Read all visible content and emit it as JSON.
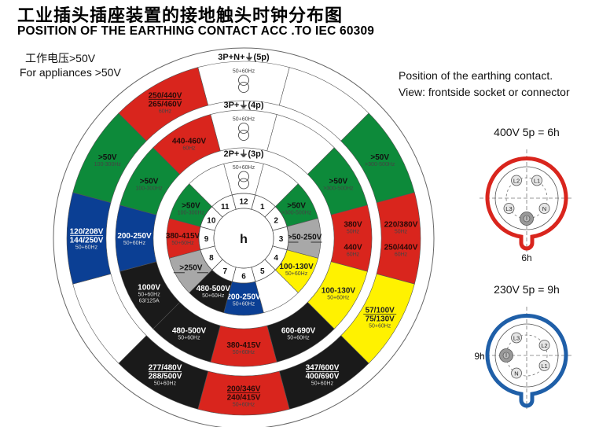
{
  "header": {
    "title": "工业插头插座装置的接地触头时钟分布图",
    "subtitle": "POSITION OF THE EARTHING CONTACT ACC .TO IEC 60309"
  },
  "notes": {
    "left_cn": "工作电压>50V",
    "left_en": "For appliances >50V",
    "right_1": "Position of the earthing contact.",
    "right_2": "View: frontside socket or connector"
  },
  "colors": {
    "red": "#d9251d",
    "green": "#0d8a3a",
    "blue": "#0b3f94",
    "yellow": "#fff200",
    "black": "#1a1a1a",
    "gray": "#a8a8a8",
    "white": "#ffffff"
  },
  "center_label": "h",
  "hours": [
    "12",
    "1",
    "2",
    "3",
    "4",
    "5",
    "6",
    "7",
    "8",
    "9",
    "10",
    "11"
  ],
  "rings": [
    {
      "label": "3P+N+⏚(5p)",
      "segments": [
        {
          "hour": 12,
          "color": "white",
          "icon": "transformer-icon",
          "lines": [
            {
              "t": "50+60Hz",
              "s": "sm"
            }
          ]
        },
        {
          "hour": 1,
          "color": "white",
          "lines": []
        },
        {
          "hour": 2,
          "color": "green",
          "lines": [
            {
              "t": ">50V",
              "s": "b"
            },
            {
              "t": ">300-500Hz",
              "s": "sm"
            }
          ]
        },
        {
          "hour": 3,
          "color": "red",
          "lines": [
            {
              "t": "220/380V",
              "s": "b"
            },
            {
              "t": "50Hz",
              "s": "sm"
            },
            {
              "t": "",
              "s": "gap"
            },
            {
              "t": "250/440V",
              "s": "b"
            },
            {
              "t": "60Hz",
              "s": "sm"
            }
          ]
        },
        {
          "hour": 4,
          "color": "yellow",
          "lines": [
            {
              "t": "57/100V",
              "s": "bu"
            },
            {
              "t": "75/130V",
              "s": "b"
            },
            {
              "t": "50+60Hz",
              "s": "sm"
            }
          ]
        },
        {
          "hour": 5,
          "color": "black",
          "lines": [
            {
              "t": "347/600V",
              "s": "bu"
            },
            {
              "t": "400/690V",
              "s": "b"
            },
            {
              "t": "50+60Hz",
              "s": "sm"
            }
          ]
        },
        {
          "hour": 6,
          "color": "red",
          "lines": [
            {
              "t": "200/346V",
              "s": "bu"
            },
            {
              "t": "240/415V",
              "s": "b"
            },
            {
              "t": "50+60Hz",
              "s": "sm"
            }
          ]
        },
        {
          "hour": 7,
          "color": "black",
          "lines": [
            {
              "t": "277/480V",
              "s": "bu"
            },
            {
              "t": "288/500V",
              "s": "b"
            },
            {
              "t": "50+60Hz",
              "s": "sm"
            }
          ]
        },
        {
          "hour": 8,
          "color": "white",
          "lines": []
        },
        {
          "hour": 9,
          "color": "blue",
          "lines": [
            {
              "t": "120/208V",
              "s": "bu"
            },
            {
              "t": "144/250V",
              "s": "b"
            },
            {
              "t": "50+60Hz",
              "s": "sm"
            }
          ]
        },
        {
          "hour": 10,
          "color": "green",
          "lines": [
            {
              "t": ">50V",
              "s": "b"
            },
            {
              "t": "100-300Hz",
              "s": "sm"
            }
          ]
        },
        {
          "hour": 11,
          "color": "red",
          "lines": [
            {
              "t": "250/440V",
              "s": "bu"
            },
            {
              "t": "265/460V",
              "s": "b"
            },
            {
              "t": "60Hz",
              "s": "sm"
            }
          ]
        }
      ]
    },
    {
      "label": "3P+⏚(4p)",
      "segments": [
        {
          "hour": 12,
          "color": "white",
          "icon": "transformer-icon",
          "lines": [
            {
              "t": "50+60Hz",
              "s": "sm"
            }
          ]
        },
        {
          "hour": 1,
          "color": "white",
          "lines": []
        },
        {
          "hour": 2,
          "color": "green",
          "lines": [
            {
              "t": ">50V",
              "s": "b"
            },
            {
              "t": ">300-500Hz",
              "s": "sm"
            }
          ]
        },
        {
          "hour": 3,
          "color": "red",
          "lines": [
            {
              "t": "380V",
              "s": "b"
            },
            {
              "t": "50Hz",
              "s": "sm"
            },
            {
              "t": "",
              "s": "gap"
            },
            {
              "t": "440V",
              "s": "b"
            },
            {
              "t": "60Hz",
              "s": "sm"
            }
          ]
        },
        {
          "hour": 4,
          "color": "yellow",
          "lines": [
            {
              "t": "100-130V",
              "s": "b"
            },
            {
              "t": "50+60Hz",
              "s": "sm"
            }
          ]
        },
        {
          "hour": 5,
          "color": "black",
          "lines": [
            {
              "t": "600-690V",
              "s": "b"
            },
            {
              "t": "50+60Hz",
              "s": "sm"
            }
          ]
        },
        {
          "hour": 6,
          "color": "red",
          "lines": [
            {
              "t": "380-415V",
              "s": "b"
            },
            {
              "t": "50+60Hz",
              "s": "sm"
            }
          ]
        },
        {
          "hour": 7,
          "color": "black",
          "lines": [
            {
              "t": "480-500V",
              "s": "b"
            },
            {
              "t": "50+60Hz",
              "s": "sm"
            }
          ]
        },
        {
          "hour": 8,
          "color": "black",
          "lines": [
            {
              "t": "1000V",
              "s": "b"
            },
            {
              "t": "50+60Hz",
              "s": "sm"
            },
            {
              "t": "63/125A",
              "s": "sm"
            }
          ]
        },
        {
          "hour": 9,
          "color": "blue",
          "lines": [
            {
              "t": "200-250V",
              "s": "b"
            },
            {
              "t": "50+60Hz",
              "s": "sm"
            }
          ]
        },
        {
          "hour": 10,
          "color": "green",
          "lines": [
            {
              "t": ">50V",
              "s": "b"
            },
            {
              "t": "100-300Hz",
              "s": "sm"
            }
          ]
        },
        {
          "hour": 11,
          "color": "red",
          "lines": [
            {
              "t": "440-460V",
              "s": "b"
            },
            {
              "t": "60Hz",
              "s": "sm"
            }
          ]
        }
      ]
    },
    {
      "label": "2P+⏚(3p)",
      "segments": [
        {
          "hour": 12,
          "color": "white",
          "icon": "transformer-icon",
          "lines": [
            {
              "t": "50+60Hz",
              "s": "sm"
            }
          ]
        },
        {
          "hour": 1,
          "color": "white",
          "lines": []
        },
        {
          "hour": 2,
          "color": "green",
          "lines": [
            {
              "t": ">50V",
              "s": "b"
            },
            {
              "t": ">300-500Hz",
              "s": "sm"
            }
          ]
        },
        {
          "hour": 3,
          "color": "gray",
          "lines": [
            {
              "t": ">50-250V",
              "s": "b"
            },
            {
              "t": "",
              "s": "dbl"
            }
          ]
        },
        {
          "hour": 4,
          "color": "yellow",
          "lines": [
            {
              "t": "100-130V",
              "s": "b"
            },
            {
              "t": "50+60Hz",
              "s": "sm"
            }
          ]
        },
        {
          "hour": 5,
          "color": "white",
          "lines": []
        },
        {
          "hour": 6,
          "color": "blue",
          "lines": [
            {
              "t": "200-250V",
              "s": "b"
            },
            {
              "t": "50+60Hz",
              "s": "sm"
            }
          ]
        },
        {
          "hour": 7,
          "color": "black",
          "lines": [
            {
              "t": "480-500V",
              "s": "b"
            },
            {
              "t": "50+60Hz",
              "s": "sm"
            }
          ]
        },
        {
          "hour": 8,
          "color": "gray",
          "lines": [
            {
              "t": ">250V",
              "s": "b"
            },
            {
              "t": "",
              "s": "dbl"
            }
          ]
        },
        {
          "hour": 9,
          "color": "red",
          "lines": [
            {
              "t": "380-415V",
              "s": "b"
            },
            {
              "t": "50+60Hz",
              "s": "sm"
            }
          ]
        },
        {
          "hour": 10,
          "color": "green",
          "lines": [
            {
              "t": ">50V",
              "s": "b"
            },
            {
              "t": "100-300Hz",
              "s": "sm"
            }
          ]
        },
        {
          "hour": 11,
          "color": "white",
          "lines": []
        }
      ]
    }
  ],
  "plugs": [
    {
      "title": "400V 5p = 6h",
      "color": "#d9251d",
      "earth_hour": 6,
      "hour_label": "6h",
      "pins": [
        {
          "name": "L2",
          "hour": 11
        },
        {
          "name": "L1",
          "hour": 1
        },
        {
          "name": "N",
          "hour": 4
        },
        {
          "name": "L3",
          "hour": 8
        }
      ]
    },
    {
      "title": "230V 5p = 9h",
      "color": "#1f5fa8",
      "earth_hour": 9,
      "hour_label": "9h",
      "pins": [
        {
          "name": "L3",
          "hour": 11
        },
        {
          "name": "L2",
          "hour": 2
        },
        {
          "name": "L1",
          "hour": 4
        },
        {
          "name": "N",
          "hour": 7
        }
      ]
    }
  ]
}
